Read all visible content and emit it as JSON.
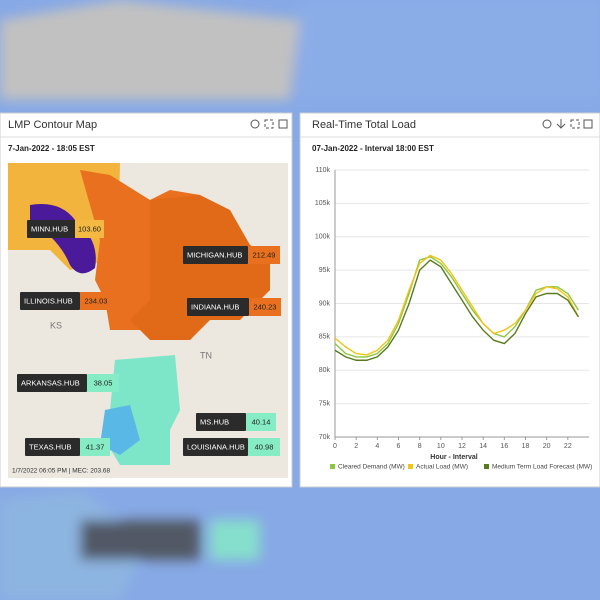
{
  "map": {
    "title": "LMP Contour Map",
    "timestamp": "7-Jan-2022 - 18:05 EST",
    "state_labels": [
      "KS",
      "TN"
    ],
    "hubs": [
      {
        "name": "MINN.HUB",
        "value": "103.60",
        "color": "#f4b942"
      },
      {
        "name": "MICHIGAN.HUB",
        "value": "212.49",
        "color": "#e8701e"
      },
      {
        "name": "ILLINOIS.HUB",
        "value": "234.03",
        "color": "#e8701e"
      },
      {
        "name": "INDIANA.HUB",
        "value": "240.23",
        "color": "#e8701e"
      },
      {
        "name": "ARKANSAS.HUB",
        "value": "38.05",
        "color": "#86ecc6"
      },
      {
        "name": "MS.HUB",
        "value": "40.14",
        "color": "#86ecc6"
      },
      {
        "name": "TEXAS.HUB",
        "value": "41.37",
        "color": "#86ecc6"
      },
      {
        "name": "LOUISIANA.HUB",
        "value": "40.98",
        "color": "#86ecc6"
      }
    ],
    "footer": "1/7/2022 06:05 PM | MEC: 203.68"
  },
  "chart_data": {
    "type": "line",
    "title": "Real-Time Total Load",
    "subtitle": "07-Jan-2022 - Interval 18:00 EST",
    "xlabel": "Hour - Interval",
    "x": [
      0,
      1,
      2,
      3,
      4,
      5,
      6,
      7,
      8,
      9,
      10,
      11,
      12,
      13,
      14,
      15,
      16,
      17,
      18,
      19,
      20,
      21,
      22,
      23
    ],
    "xlim": [
      0,
      24
    ],
    "xticks": [
      0,
      2,
      4,
      6,
      8,
      10,
      12,
      14,
      16,
      18,
      20,
      22
    ],
    "ylim": [
      70000,
      110000
    ],
    "yticks": [
      {
        "value": 70000,
        "label": "70k"
      },
      {
        "value": 75000,
        "label": "75k"
      },
      {
        "value": 80000,
        "label": "80k"
      },
      {
        "value": 85000,
        "label": "85k"
      },
      {
        "value": 90000,
        "label": "90k"
      },
      {
        "value": 95000,
        "label": "95k"
      },
      {
        "value": 100000,
        "label": "100k"
      },
      {
        "value": 105000,
        "label": "105k"
      },
      {
        "value": 110000,
        "label": "110k"
      }
    ],
    "grid": true,
    "series": [
      {
        "name": "Cleared Demand (MW)",
        "color": "#8dc63f",
        "values": [
          84000,
          82500,
          82000,
          82000,
          82500,
          84000,
          87000,
          91500,
          96500,
          97000,
          96000,
          94000,
          91500,
          89000,
          87000,
          85500,
          85000,
          86500,
          89000,
          92000,
          92500,
          92500,
          91500,
          89000
        ]
      },
      {
        "name": "Actual Load (MW)",
        "color": "#f0c419",
        "values": [
          84800,
          83500,
          82500,
          82300,
          83000,
          84500,
          87500,
          92000,
          96000,
          97200,
          96500,
          94500,
          92000,
          89500,
          87000,
          85500,
          86000,
          87000,
          89000,
          91500,
          92500,
          92200,
          91000,
          88000
        ]
      },
      {
        "name": "Medium Term Load Forecast (MW)",
        "color": "#5a7a1e",
        "values": [
          83000,
          82000,
          81500,
          81500,
          82000,
          83500,
          86000,
          90000,
          95000,
          96500,
          95500,
          93000,
          90500,
          88000,
          86000,
          84500,
          84000,
          85500,
          88500,
          91000,
          91500,
          91500,
          90500,
          88000
        ]
      }
    ]
  }
}
